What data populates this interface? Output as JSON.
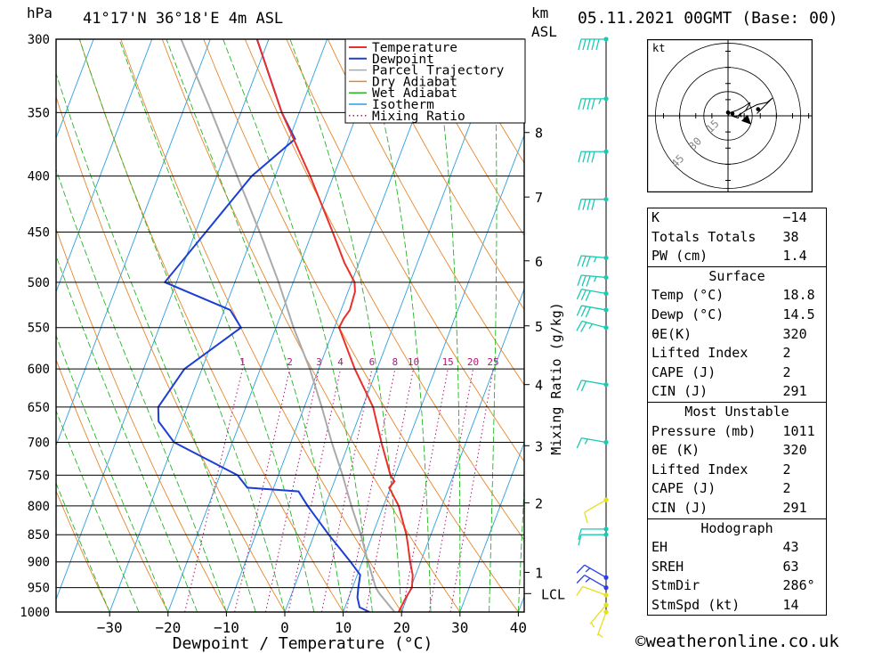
{
  "header": {
    "pressure_unit": "hPa",
    "location": "41°17'N 36°18'E 4m ASL",
    "height_unit_km": "km",
    "height_unit_asl": "ASL",
    "datetime": "05.11.2021 00GMT (Base: 00)"
  },
  "chart_data": {
    "type": "skew-t",
    "xlabel": "Dewpoint / Temperature (°C)",
    "ylabel_right": "Mixing Ratio (g/kg)",
    "x_ticks": [
      -30,
      -20,
      -10,
      0,
      10,
      20,
      30,
      40
    ],
    "x_tick_labels": [
      "−30",
      "−20",
      "−10",
      "0",
      "10",
      "20",
      "30",
      "40"
    ],
    "pressure_levels": [
      300,
      350,
      400,
      450,
      500,
      550,
      600,
      650,
      700,
      750,
      800,
      850,
      900,
      950,
      1000
    ],
    "pressure_labels": [
      "300",
      "350",
      "400",
      "450",
      "500",
      "550",
      "600",
      "650",
      "700",
      "750",
      "800",
      "850",
      "900",
      "950",
      "1000"
    ],
    "height_km": [
      {
        "p": 920,
        "label": "1"
      },
      {
        "p": 795,
        "label": "2"
      },
      {
        "p": 705,
        "label": "3"
      },
      {
        "p": 620,
        "label": "4"
      },
      {
        "p": 548,
        "label": "5"
      },
      {
        "p": 478,
        "label": "6"
      },
      {
        "p": 418,
        "label": "7"
      },
      {
        "p": 365,
        "label": "8"
      }
    ],
    "lcl": {
      "p": 962,
      "label": "LCL"
    },
    "mixing_ratios": [
      1,
      2,
      3,
      4,
      6,
      8,
      10,
      15,
      20,
      25
    ],
    "mixing_ratio_labels": [
      "1",
      "2",
      "3",
      "4",
      "6",
      "8",
      "10",
      "15",
      "20",
      "25"
    ],
    "legend": [
      "Temperature",
      "Dewpoint",
      "Parcel Trajectory",
      "Dry Adiabat",
      "Wet Adiabat",
      "Isotherm",
      "Mixing Ratio"
    ],
    "legend_position": "top-right",
    "colors": {
      "temperature": "#e8312c",
      "dewpoint": "#1c3fd6",
      "parcel": "#aaaaaa",
      "dry_adiabat": "#e8862a",
      "wet_adiabat": "#26b526",
      "isotherm": "#2a9fe0",
      "mixing_ratio": "#b0157a",
      "wind": "#19c9b2",
      "wind_low": "#e6e01a",
      "wind_mid": "#2b3fe6"
    },
    "series": [
      {
        "name": "Temperature",
        "points": [
          [
            1000,
            19.5
          ],
          [
            970,
            19.8
          ],
          [
            950,
            20.2
          ],
          [
            925,
            19.5
          ],
          [
            900,
            18.2
          ],
          [
            870,
            16.8
          ],
          [
            850,
            15.8
          ],
          [
            800,
            12.6
          ],
          [
            770,
            9.8
          ],
          [
            760,
            10.3
          ],
          [
            750,
            9.2
          ],
          [
            700,
            5.5
          ],
          [
            650,
            1.8
          ],
          [
            600,
            -3.8
          ],
          [
            550,
            -9.2
          ],
          [
            540,
            -9.0
          ],
          [
            530,
            -8.5
          ],
          [
            510,
            -8.8
          ],
          [
            500,
            -9.5
          ],
          [
            480,
            -12.5
          ],
          [
            450,
            -16.5
          ],
          [
            400,
            -24.0
          ],
          [
            350,
            -33.0
          ],
          [
            300,
            -42.0
          ]
        ]
      },
      {
        "name": "Dewpoint",
        "points": [
          [
            1000,
            14.5
          ],
          [
            990,
            12.5
          ],
          [
            970,
            11.5
          ],
          [
            950,
            11.0
          ],
          [
            925,
            10.5
          ],
          [
            900,
            8.0
          ],
          [
            850,
            2.5
          ],
          [
            800,
            -3.0
          ],
          [
            776,
            -5.5
          ],
          [
            770,
            -14.5
          ],
          [
            750,
            -17.0
          ],
          [
            700,
            -30.0
          ],
          [
            670,
            -34.0
          ],
          [
            650,
            -35.0
          ],
          [
            600,
            -33.0
          ],
          [
            550,
            -26.0
          ],
          [
            530,
            -29.0
          ],
          [
            500,
            -42.0
          ],
          [
            400,
            -34.0
          ],
          [
            370,
            -29.0
          ],
          [
            350,
            -33.0
          ],
          [
            300,
            -42.0
          ]
        ]
      },
      {
        "name": "Parcel Trajectory",
        "points": [
          [
            1000,
            18.8
          ],
          [
            962,
            15.0
          ],
          [
            950,
            14.0
          ],
          [
            900,
            11.0
          ],
          [
            850,
            8.0
          ],
          [
            800,
            4.5
          ],
          [
            750,
            1.0
          ],
          [
            700,
            -3.0
          ],
          [
            650,
            -7.0
          ],
          [
            600,
            -11.5
          ],
          [
            550,
            -17.0
          ],
          [
            500,
            -22.5
          ],
          [
            450,
            -29.0
          ],
          [
            400,
            -36.5
          ],
          [
            350,
            -45.0
          ],
          [
            300,
            -55.0
          ]
        ]
      }
    ],
    "wind_barbs": [
      {
        "p": 300,
        "dir": 270,
        "kt": 50
      },
      {
        "p": 340,
        "dir": 270,
        "kt": 45
      },
      {
        "p": 380,
        "dir": 270,
        "kt": 40
      },
      {
        "p": 420,
        "dir": 270,
        "kt": 40
      },
      {
        "p": 475,
        "dir": 275,
        "kt": 35
      },
      {
        "p": 495,
        "dir": 275,
        "kt": 35
      },
      {
        "p": 512,
        "dir": 280,
        "kt": 30
      },
      {
        "p": 530,
        "dir": 280,
        "kt": 30
      },
      {
        "p": 550,
        "dir": 285,
        "kt": 25
      },
      {
        "p": 620,
        "dir": 280,
        "kt": 20
      },
      {
        "p": 700,
        "dir": 280,
        "kt": 15
      },
      {
        "p": 790,
        "dir": 240,
        "kt": 10
      },
      {
        "p": 840,
        "dir": 270,
        "kt": 10
      },
      {
        "p": 850,
        "dir": 270,
        "kt": 10
      },
      {
        "p": 930,
        "dir": 300,
        "kt": 15
      },
      {
        "p": 950,
        "dir": 300,
        "kt": 15
      },
      {
        "p": 965,
        "dir": 290,
        "kt": 10
      },
      {
        "p": 985,
        "dir": 220,
        "kt": 5
      },
      {
        "p": 1000,
        "dir": 200,
        "kt": 5
      }
    ],
    "hodograph": {
      "unit_label": "kt",
      "ring_labels": [
        "15",
        "30",
        "45"
      ],
      "ring_speeds": [
        15,
        30,
        45
      ],
      "trace": [
        [
          0,
          0
        ],
        [
          2,
          3
        ],
        [
          8,
          5
        ],
        [
          14,
          8
        ],
        [
          20,
          12
        ],
        [
          16,
          5
        ],
        [
          12,
          2
        ],
        [
          7,
          -1
        ],
        [
          3,
          0
        ],
        [
          9,
          -2
        ],
        [
          11,
          2
        ],
        [
          12,
          -1
        ],
        [
          10,
          1
        ],
        [
          18,
          6
        ],
        [
          26,
          10
        ],
        [
          35,
          12
        ],
        [
          40,
          16
        ],
        [
          26,
          2
        ]
      ],
      "storm_motion": [
        16,
        -3
      ],
      "markers": [
        [
          0,
          3
        ],
        [
          4,
          2
        ]
      ]
    }
  },
  "indices": {
    "top": [
      {
        "label": "K",
        "value": "−14"
      },
      {
        "label": "Totals Totals",
        "value": "38"
      },
      {
        "label": "PW (cm)",
        "value": "1.4"
      }
    ],
    "surface": {
      "title": "Surface",
      "rows": [
        {
          "label": "Temp (°C)",
          "value": "18.8"
        },
        {
          "label": "Dewp (°C)",
          "value": "14.5"
        },
        {
          "label": "θE(K)",
          "value": "320"
        },
        {
          "label": "Lifted Index",
          "value": "2"
        },
        {
          "label": "CAPE (J)",
          "value": "2"
        },
        {
          "label": "CIN (J)",
          "value": "291"
        }
      ]
    },
    "most_unstable": {
      "title": "Most Unstable",
      "rows": [
        {
          "label": "Pressure (mb)",
          "value": "1011"
        },
        {
          "label": "θE (K)",
          "value": "320"
        },
        {
          "label": "Lifted Index",
          "value": "2"
        },
        {
          "label": "CAPE (J)",
          "value": "2"
        },
        {
          "label": "CIN (J)",
          "value": "291"
        }
      ]
    },
    "hodograph": {
      "title": "Hodograph",
      "rows": [
        {
          "label": "EH",
          "value": "43"
        },
        {
          "label": "SREH",
          "value": "63"
        },
        {
          "label": "StmDir",
          "value": "286°"
        },
        {
          "label": "StmSpd (kt)",
          "value": "14"
        }
      ]
    }
  },
  "footer": {
    "site": "©weatheronline.co.uk"
  }
}
